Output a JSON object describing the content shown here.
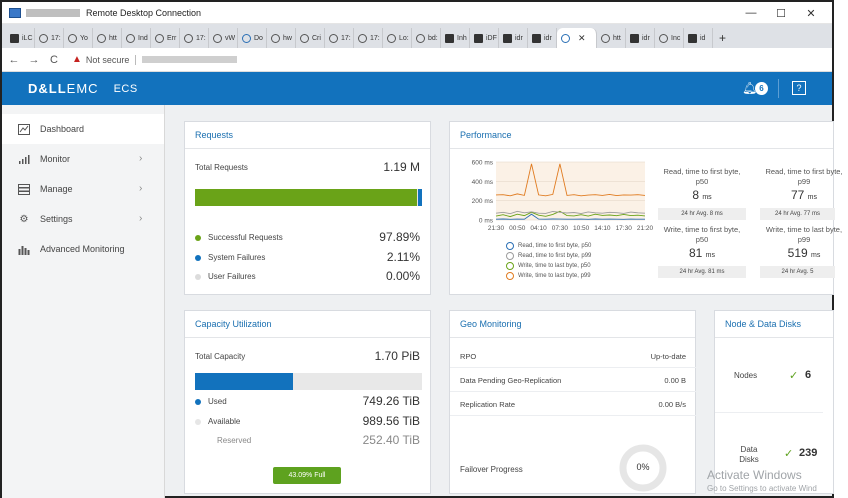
{
  "window": {
    "title": "Remote Desktop Connection",
    "min": "—",
    "max": "☐",
    "close": "✕"
  },
  "tabs": [
    {
      "label": "iLC",
      "icon": "app-icon"
    },
    {
      "label": "17:",
      "icon": "globe-icon"
    },
    {
      "label": "Yo",
      "icon": "globe-icon"
    },
    {
      "label": "htt",
      "icon": "globe-icon"
    },
    {
      "label": "Ind",
      "icon": "globe-icon"
    },
    {
      "label": "Err",
      "icon": "globe-icon"
    },
    {
      "label": "17:",
      "icon": "globe-icon"
    },
    {
      "label": "vW",
      "icon": "globe-icon"
    },
    {
      "label": "Do",
      "icon": "download-icon"
    },
    {
      "label": "hw",
      "icon": "globe-icon"
    },
    {
      "label": "Cri",
      "icon": "globe-icon"
    },
    {
      "label": "17:",
      "icon": "globe-icon"
    },
    {
      "label": "17:",
      "icon": "globe-icon"
    },
    {
      "label": "Lo:",
      "icon": "globe-icon"
    },
    {
      "label": "bd:",
      "icon": "globe-icon"
    },
    {
      "label": "Inh",
      "icon": "app-icon"
    },
    {
      "label": "iDF",
      "icon": "doc-icon"
    },
    {
      "label": "idr",
      "icon": "app-icon"
    },
    {
      "label": "idr",
      "icon": "app-icon"
    },
    {
      "label": "htt",
      "icon": "globe-icon"
    },
    {
      "label": "idr",
      "icon": "app-icon"
    },
    {
      "label": "Inc",
      "icon": "globe-icon"
    },
    {
      "label": "id",
      "icon": "app-icon"
    }
  ],
  "address": {
    "warning": "Not secure"
  },
  "header": {
    "brand_bold": "D&LL",
    "brand_thin": "EMC",
    "product": "ECS",
    "alert_count": "6",
    "help": "?"
  },
  "sidebar": {
    "items": [
      {
        "label": "Dashboard",
        "icon": "dashboard-icon"
      },
      {
        "label": "Monitor",
        "icon": "monitor-icon"
      },
      {
        "label": "Manage",
        "icon": "manage-icon"
      },
      {
        "label": "Settings",
        "icon": "settings-icon"
      },
      {
        "label": "Advanced Monitoring",
        "icon": "bar-chart-icon"
      }
    ]
  },
  "requests": {
    "title": "Requests",
    "total_label": "Total Requests",
    "total_value": "1.19 M",
    "success_fraction": 0.9789,
    "rows": [
      {
        "label": "Successful Requests",
        "value": "97.89%",
        "color": "#6aa318"
      },
      {
        "label": "System Failures",
        "value": "2.11%",
        "color": "#1272bd"
      },
      {
        "label": "User Failures",
        "value": "0.00%",
        "color": "#dcdcdc"
      }
    ]
  },
  "performance": {
    "title": "Performance",
    "stats": [
      {
        "label": "Read, time to first byte, p50",
        "value": "8",
        "unit": "ms",
        "avg": "24 hr Avg. 8 ms"
      },
      {
        "label": "Read, time to first byte, p99",
        "value": "77",
        "unit": "ms",
        "avg": "24 hr Avg. 77 ms"
      },
      {
        "label": "Write, time to first byte, p50",
        "value": "81",
        "unit": "ms",
        "avg": "24 hr Avg. 81 ms"
      },
      {
        "label": "Write, time to last byte, p99",
        "value": "519",
        "unit": "ms",
        "avg": "24 hr Avg. 5"
      }
    ],
    "legend": [
      {
        "label": "Read, time to first byte, p50",
        "color": "#2a6fb5"
      },
      {
        "label": "Read, time to first byte, p99",
        "color": "#9c9c9c"
      },
      {
        "label": "Write, time to last byte, p50",
        "color": "#6aa318"
      },
      {
        "label": "Write, time to last byte, p99",
        "color": "#e07b20"
      }
    ]
  },
  "chart_data": {
    "type": "line",
    "title": "",
    "yticks": [
      "600 ms",
      "400 ms",
      "200 ms",
      "0 ms"
    ],
    "ylim": [
      0,
      600
    ],
    "xticks": [
      "21:30",
      "00:50",
      "04:10",
      "07:30",
      "10:50",
      "14:10",
      "17:30",
      "21:20"
    ],
    "grid": true,
    "series": [
      {
        "name": "Write, time to last byte, p99",
        "color": "#e07b20",
        "values": [
          260,
          262,
          250,
          270,
          255,
          580,
          260,
          250,
          265,
          580,
          255,
          262,
          250,
          258,
          262,
          255,
          265,
          252,
          260,
          258,
          262,
          255
        ]
      },
      {
        "name": "Write, time to last byte, p50",
        "color": "#6aa318",
        "values": [
          40,
          55,
          35,
          60,
          45,
          80,
          50,
          38,
          58,
          90,
          45,
          42,
          55,
          40,
          60,
          48,
          52,
          44,
          58,
          46,
          50,
          42
        ]
      },
      {
        "name": "Read, time to first byte, p99",
        "color": "#9c9c9c",
        "values": [
          70,
          80,
          65,
          90,
          75,
          85,
          70,
          68,
          88,
          80,
          72,
          78,
          66,
          84,
          74,
          70,
          80,
          76,
          68,
          82,
          74,
          70
        ]
      },
      {
        "name": "Read, time to first byte, p50",
        "color": "#2a6fb5",
        "values": [
          8,
          10,
          7,
          9,
          8,
          60,
          9,
          8,
          10,
          9,
          8,
          8,
          9,
          7,
          10,
          8,
          9,
          8,
          7,
          9,
          8,
          8
        ]
      }
    ]
  },
  "capacity": {
    "title": "Capacity Utilization",
    "total_label": "Total Capacity",
    "total_value": "1.70 PiB",
    "used_fraction": 0.4309,
    "rows": [
      {
        "label": "Used",
        "value": "749.26 TiB",
        "color": "#1272bd"
      },
      {
        "label": "Available",
        "value": "989.56 TiB",
        "color": "#dcdcdc"
      },
      {
        "label": "Reserved",
        "value": "252.40 TiB",
        "color": ""
      }
    ],
    "badge": "43.09% Full"
  },
  "geo": {
    "title": "Geo Monitoring",
    "rows": [
      {
        "label": "RPO",
        "value": "Up-to-date"
      },
      {
        "label": "Data Pending Geo-Replication",
        "value": "0.00 B"
      },
      {
        "label": "Replication Rate",
        "value": "0.00 B/s"
      }
    ],
    "failover_label": "Failover Progress",
    "failover_value": "0%"
  },
  "nodes": {
    "title": "Node & Data Disks",
    "nodes_label": "Nodes",
    "nodes_value": "6",
    "disks_label": "Data Disks",
    "disks_value": "239"
  },
  "watermark": {
    "title": "Activate Windows",
    "subtitle": "Go to Settings to activate Wind"
  }
}
